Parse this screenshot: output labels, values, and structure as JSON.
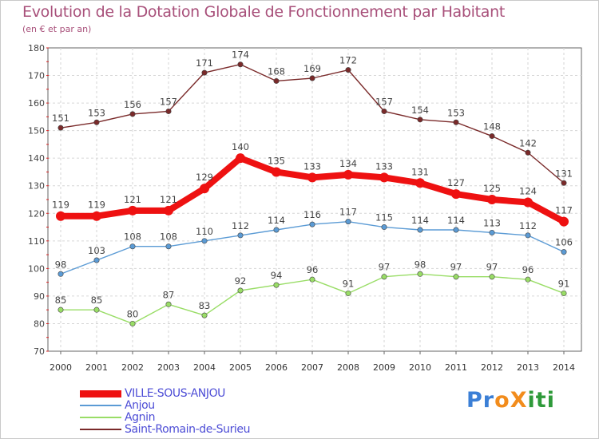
{
  "chart_data": {
    "type": "line",
    "title": "Evolution de la Dotation Globale de Fonctionnement par Habitant",
    "subtitle": "(en € et par an)",
    "categories": [
      "2000",
      "2001",
      "2002",
      "2003",
      "2004",
      "2005",
      "2006",
      "2007",
      "2008",
      "2009",
      "2010",
      "2011",
      "2012",
      "2013",
      "2014"
    ],
    "ylim": [
      70,
      180
    ],
    "yticks": [
      70,
      80,
      90,
      100,
      110,
      120,
      130,
      140,
      150,
      160,
      170,
      180
    ],
    "grid": true,
    "series": [
      {
        "name": "VILLE-SOUS-ANJOU",
        "color": "#ee1111",
        "values": [
          119,
          119,
          121,
          121,
          129,
          140,
          135,
          133,
          134,
          133,
          131,
          127,
          125,
          124,
          117
        ]
      },
      {
        "name": "Anjou",
        "color": "#5b9bd5",
        "values": [
          98,
          103,
          108,
          108,
          110,
          112,
          114,
          116,
          117,
          115,
          114,
          114,
          113,
          112,
          106
        ]
      },
      {
        "name": "Agnin",
        "color": "#99dd66",
        "values": [
          85,
          85,
          80,
          87,
          83,
          92,
          94,
          96,
          91,
          97,
          98,
          97,
          97,
          96,
          91
        ]
      },
      {
        "name": "Saint-Romain-de-Surieu",
        "color": "#7a2a2a",
        "values": [
          151,
          153,
          156,
          157,
          171,
          174,
          168,
          169,
          172,
          157,
          154,
          153,
          148,
          142,
          131
        ]
      }
    ]
  },
  "logo": {
    "text": "ProXiti",
    "letters": [
      "P",
      "r",
      "o",
      "X",
      "i",
      "t",
      "i"
    ],
    "colors": [
      "#3b7fd6",
      "#3b7fd6",
      "#f28c1c",
      "#f28c1c",
      "#2f9a3a",
      "#2f9a3a",
      "#2f9a3a"
    ]
  }
}
